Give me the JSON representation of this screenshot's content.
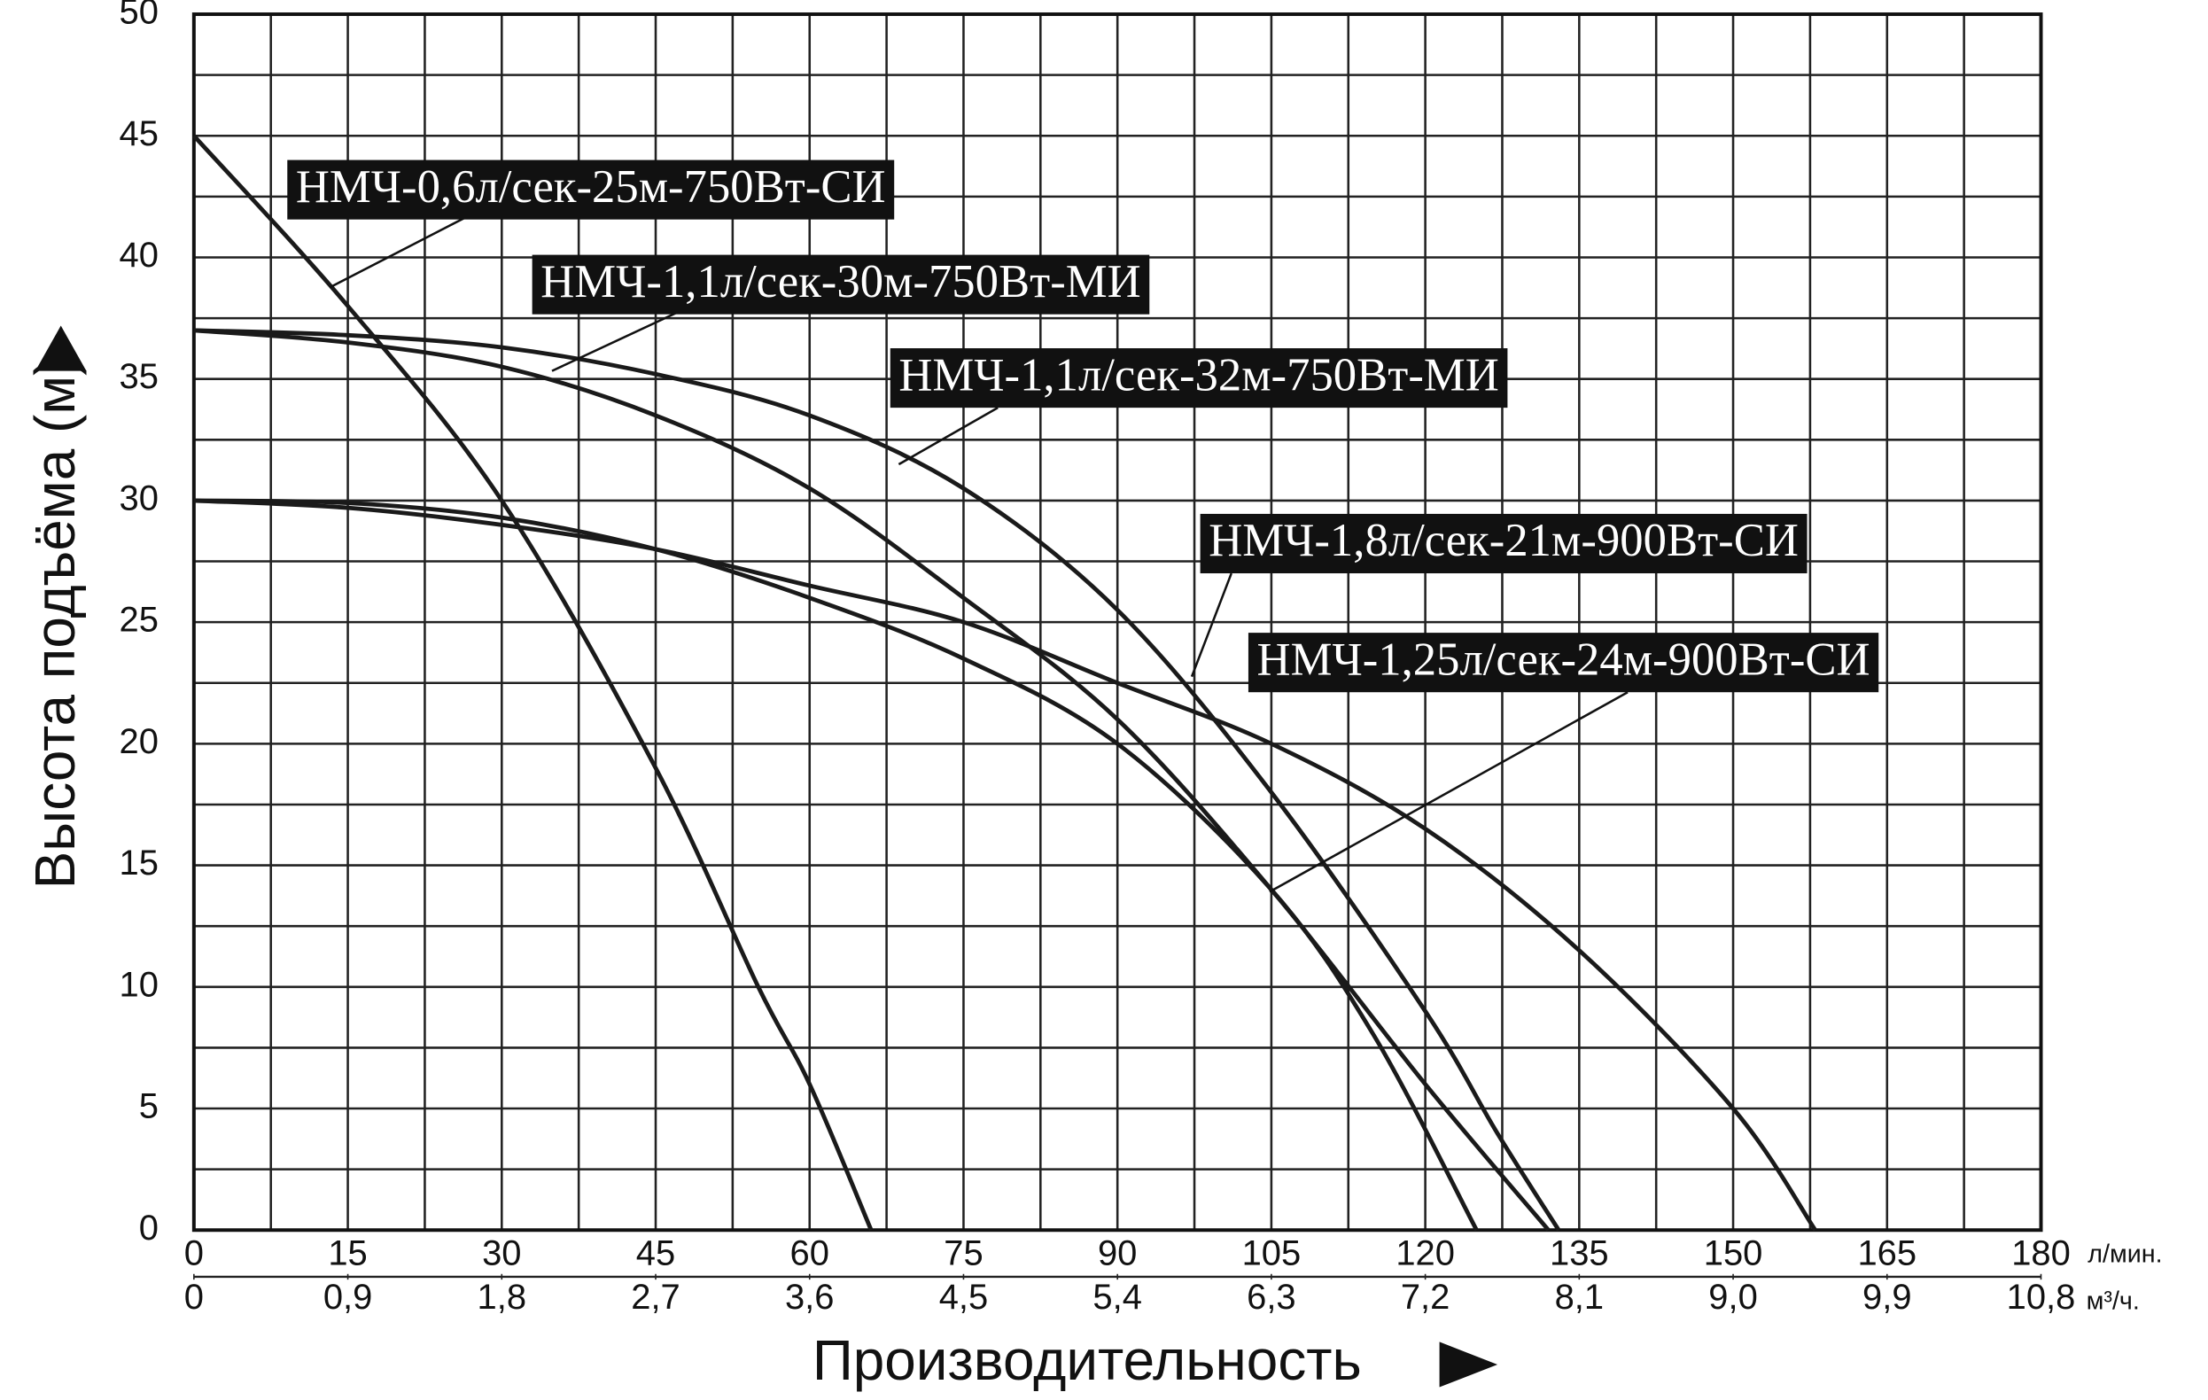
{
  "chart_data": {
    "type": "line",
    "x_label": "Производительность",
    "y_label": "Высота подъёма (м)",
    "x_unit": "л/мин.",
    "x2_unit": "м³/ч.",
    "xlim": [
      0,
      180
    ],
    "xticks": [
      0,
      15,
      30,
      45,
      60,
      75,
      90,
      105,
      120,
      135,
      150,
      165,
      180
    ],
    "x2lim": [
      0,
      10.8
    ],
    "x2ticks": [
      0,
      {
        "value": 0.9,
        "label": "0,9"
      },
      {
        "value": 1.8,
        "label": "1,8"
      },
      {
        "value": 2.7,
        "label": "2,7"
      },
      {
        "value": 3.6,
        "label": "3,6"
      },
      {
        "value": 4.5,
        "label": "4,5"
      },
      {
        "value": 5.4,
        "label": "5,4"
      },
      {
        "value": 6.3,
        "label": "6,3"
      },
      {
        "value": 7.2,
        "label": "7,2"
      },
      {
        "value": 8.1,
        "label": "8,1"
      },
      {
        "value": 9.0,
        "label": "9,0"
      },
      {
        "value": 9.9,
        "label": "9,9"
      },
      {
        "value": 10.8,
        "label": "10,8"
      }
    ],
    "ylim": [
      0,
      50
    ],
    "yticks": [
      0,
      5,
      10,
      15,
      20,
      25,
      30,
      35,
      40,
      45,
      50
    ],
    "grid": true,
    "minor_grid": true,
    "series": [
      {
        "name": "НМЧ-0,6л/сек-25м-750Вт-СИ",
        "color": "#1a1a1a",
        "x": [
          0,
          15,
          30,
          45,
          55,
          60,
          66
        ],
        "values": [
          45,
          38,
          30,
          19,
          10,
          6,
          0
        ]
      },
      {
        "name": "НМЧ-1,1л/сек-30м-750Вт-МИ",
        "color": "#1a1a1a",
        "x": [
          0,
          15,
          30,
          45,
          60,
          75,
          90,
          105,
          120,
          132
        ],
        "values": [
          37,
          36.5,
          35.5,
          33.5,
          30.5,
          26,
          21,
          14,
          6,
          0
        ]
      },
      {
        "name": "НМЧ-1,1л/сек-32м-750Вт-МИ",
        "color": "#1a1a1a",
        "x": [
          0,
          15,
          30,
          45,
          60,
          75,
          90,
          105,
          120,
          127,
          133
        ],
        "values": [
          37,
          36.8,
          36.3,
          35.2,
          33.5,
          30.5,
          25.5,
          18,
          9,
          4,
          0
        ]
      },
      {
        "name": "НМЧ-1,8л/сек-21м-900Вт-СИ",
        "color": "#1a1a1a",
        "x": [
          0,
          15,
          30,
          45,
          60,
          75,
          90,
          105,
          120,
          135,
          150,
          158
        ],
        "values": [
          30,
          29.7,
          29,
          28,
          26.5,
          25,
          22.5,
          20,
          16.5,
          11.5,
          5,
          0
        ]
      },
      {
        "name": "НМЧ-1,25л/сек-24м-900Вт-СИ",
        "color": "#1a1a1a",
        "x": [
          0,
          15,
          30,
          45,
          60,
          75,
          90,
          105,
          115,
          125
        ],
        "values": [
          30,
          29.9,
          29.3,
          28,
          26,
          23.5,
          20,
          14,
          8,
          0
        ]
      }
    ]
  }
}
